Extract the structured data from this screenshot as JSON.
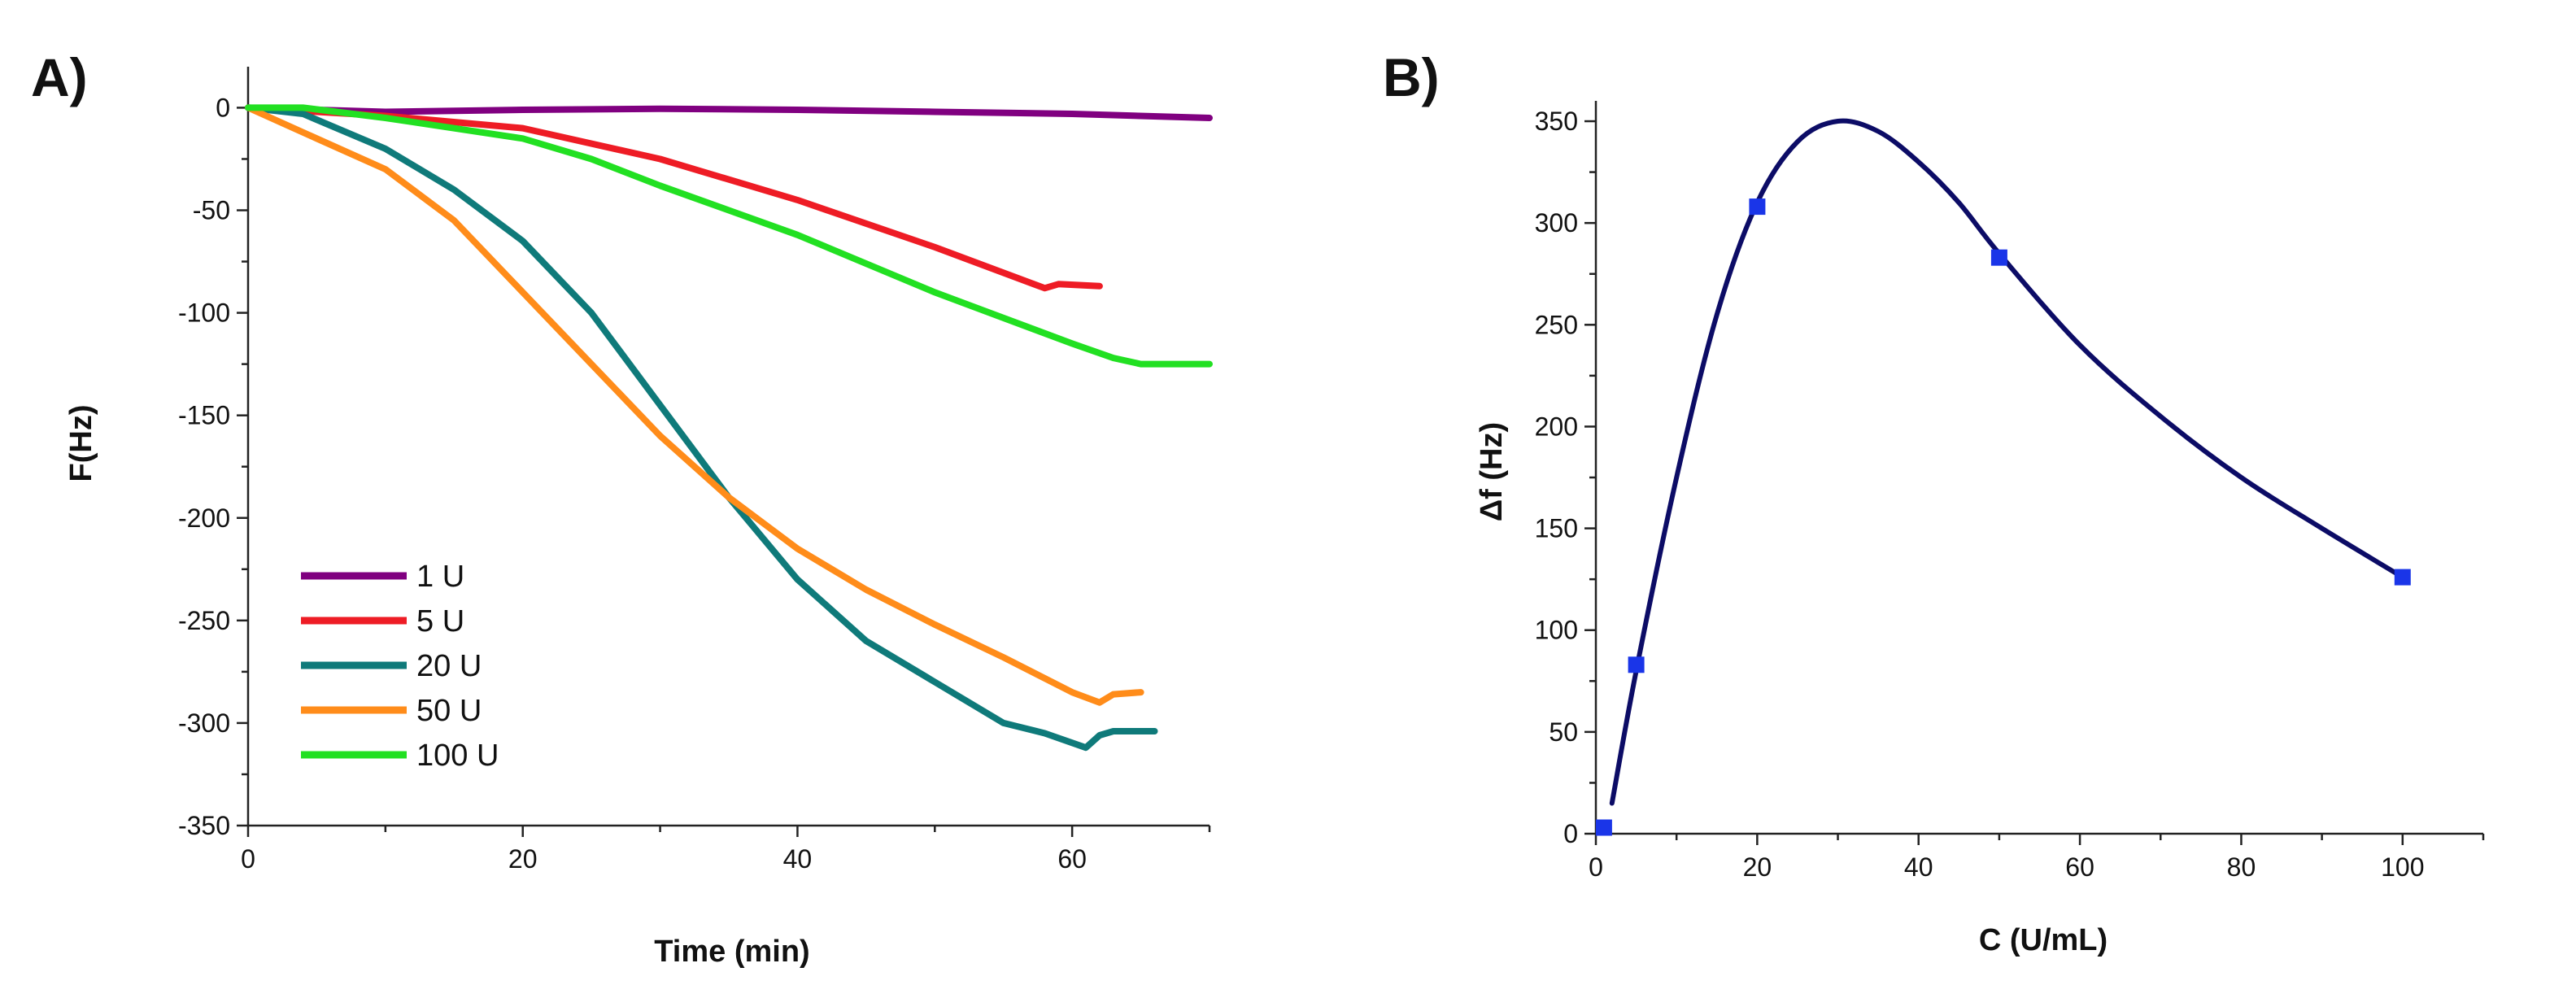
{
  "chart_data": [
    {
      "panel": "A)",
      "type": "line",
      "title": "",
      "xlabel": "Time (min)",
      "ylabel": "F(Hz)",
      "xlim": [
        0,
        70
      ],
      "ylim": [
        -350,
        20
      ],
      "xticks": [
        0,
        20,
        40,
        60
      ],
      "yticks": [
        0,
        -50,
        -100,
        -150,
        -200,
        -250,
        -300,
        -350
      ],
      "grid": false,
      "legend_position": "bottom-left",
      "series": [
        {
          "name": "1 U",
          "color": "#800080",
          "x": [
            0,
            10,
            20,
            30,
            40,
            50,
            60,
            70
          ],
          "y": [
            0,
            -2,
            -1,
            -0.5,
            -1,
            -2,
            -3,
            -5
          ]
        },
        {
          "name": "5 U",
          "color": "#ee1c25",
          "x": [
            0,
            10,
            20,
            30,
            40,
            50,
            58,
            59,
            62
          ],
          "y": [
            0,
            -4,
            -10,
            -25,
            -45,
            -68,
            -88,
            -86,
            -87
          ]
        },
        {
          "name": "20 U",
          "color": "#0f7a7a",
          "x": [
            0,
            4,
            10,
            15,
            20,
            25,
            30,
            35,
            40,
            45,
            50,
            55,
            58,
            61,
            62,
            63,
            66
          ],
          "y": [
            0,
            -3,
            -20,
            -40,
            -65,
            -100,
            -145,
            -190,
            -230,
            -260,
            -280,
            -300,
            -305,
            -312,
            -306,
            -304,
            -304
          ]
        },
        {
          "name": "50 U",
          "color": "#ff8c1a",
          "x": [
            0,
            5,
            10,
            15,
            20,
            25,
            30,
            35,
            40,
            45,
            50,
            55,
            60,
            62,
            63,
            65
          ],
          "y": [
            0,
            -15,
            -30,
            -55,
            -90,
            -125,
            -160,
            -190,
            -215,
            -235,
            -252,
            -268,
            -285,
            -290,
            -286,
            -285
          ]
        },
        {
          "name": "100 U",
          "color": "#22e022",
          "x": [
            0,
            4,
            10,
            20,
            25,
            30,
            40,
            50,
            60,
            63,
            65,
            70
          ],
          "y": [
            0,
            0,
            -5,
            -15,
            -25,
            -38,
            -62,
            -90,
            -115,
            -122,
            -125,
            -125
          ]
        }
      ]
    },
    {
      "panel": "B)",
      "type": "scatter",
      "title": "",
      "xlabel": "C (U/mL)",
      "ylabel": "Δf (Hz)",
      "xlim": [
        0,
        110
      ],
      "ylim": [
        0,
        360
      ],
      "xticks": [
        0,
        20,
        40,
        60,
        80,
        100
      ],
      "yticks": [
        0,
        50,
        100,
        150,
        200,
        250,
        300,
        350
      ],
      "grid": false,
      "points": {
        "color": "#1a35e8",
        "x": [
          1,
          5,
          20,
          50,
          100
        ],
        "y": [
          3,
          83,
          308,
          283,
          126
        ]
      },
      "fit_curve": {
        "color": "#0c0c66",
        "x": [
          2,
          5,
          10,
          15,
          20,
          25,
          30,
          35,
          40,
          45,
          50,
          60,
          70,
          80,
          90,
          100
        ],
        "y": [
          15,
          80,
          175,
          255,
          310,
          340,
          350,
          345,
          330,
          310,
          285,
          240,
          205,
          175,
          150,
          126
        ]
      }
    }
  ]
}
